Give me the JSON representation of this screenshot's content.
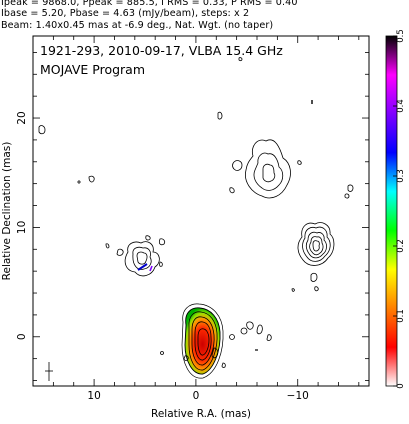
{
  "header": {
    "line1": "Ipeak = 9868.0, Ppeak = 885.5, I RMS = 0.33, P RMS = 0.40",
    "line2": "Ibase = 5.20, Pbase = 4.63 (mJy/beam), steps: x 2",
    "line3": "Beam: 1.40x0.45 mas at -6.9 deg., Nat. Wgt. (no taper)"
  },
  "plot": {
    "title_line1": "1921-293, 2010-09-17, VLBA 15.4 GHz",
    "title_line2": "MOJAVE Program",
    "xlabel": "Relative R.A. (mas)",
    "ylabel": "Relative Declination (mas)",
    "x_ticks": [
      {
        "value": 10,
        "label": "10"
      },
      {
        "value": 0,
        "label": "0"
      },
      {
        "value": -10,
        "label": "−10"
      }
    ],
    "y_ticks": [
      {
        "value": 0,
        "label": "0"
      },
      {
        "value": 10,
        "label": "10"
      },
      {
        "value": 20,
        "label": "20"
      }
    ],
    "xlim": [
      16,
      -17
    ],
    "ylim": [
      -4.5,
      27.5
    ]
  },
  "colorbar": {
    "min": 0,
    "max": 0.5,
    "ticks": [
      {
        "value": 0,
        "label": "0"
      },
      {
        "value": 0.1,
        "label": "0.1"
      },
      {
        "value": 0.2,
        "label": "0.2"
      },
      {
        "value": 0.3,
        "label": "0.3"
      },
      {
        "value": 0.4,
        "label": "0.4"
      },
      {
        "value": 0.5,
        "label": "0.5"
      }
    ],
    "colors": [
      "#ffffff",
      "#ff0000",
      "#ff7f00",
      "#ffff00",
      "#00ff00",
      "#00ffff",
      "#0000ff",
      "#7f00ff",
      "#ff00ff",
      "#000000"
    ]
  }
}
